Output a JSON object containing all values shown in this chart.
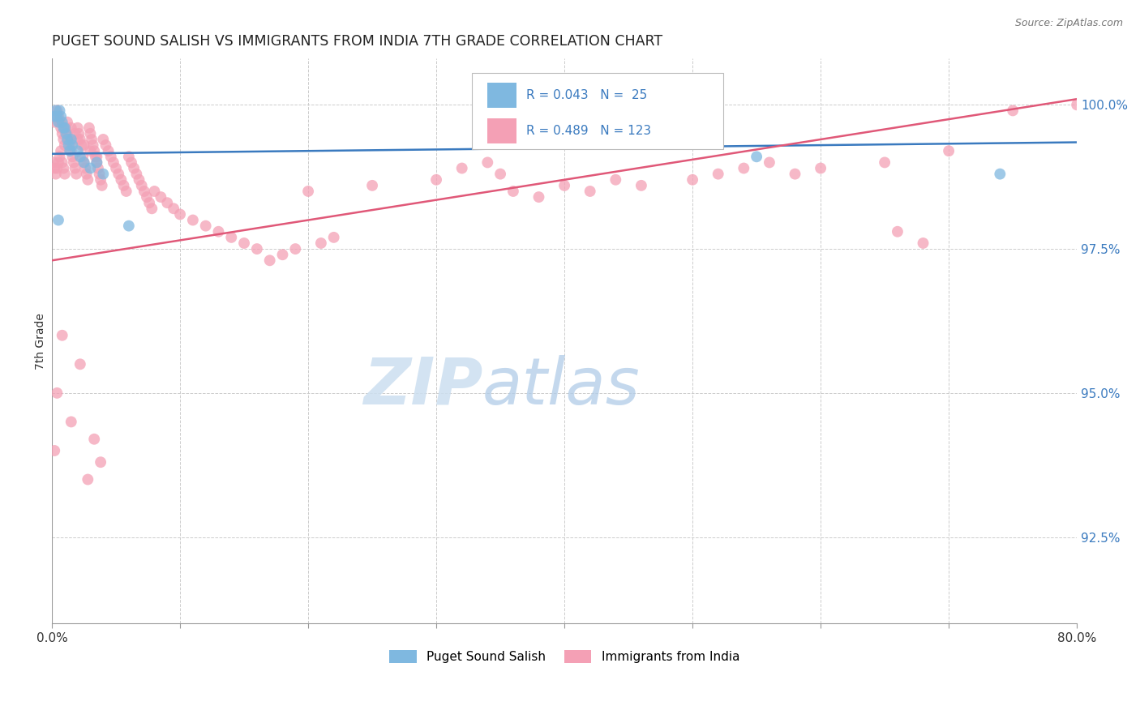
{
  "title": "PUGET SOUND SALISH VS IMMIGRANTS FROM INDIA 7TH GRADE CORRELATION CHART",
  "source": "Source: ZipAtlas.com",
  "ylabel": "7th Grade",
  "xlim": [
    0.0,
    0.8
  ],
  "ylim": [
    0.91,
    1.008
  ],
  "blue_R": 0.043,
  "blue_N": 25,
  "pink_R": 0.489,
  "pink_N": 123,
  "blue_color": "#7fb8e0",
  "pink_color": "#f4a0b5",
  "blue_line_color": "#3a7abf",
  "pink_line_color": "#e05878",
  "background_color": "#ffffff",
  "grid_color": "#cccccc",
  "watermark_zip": "ZIP",
  "watermark_atlas": "atlas",
  "legend_label_blue": "Puget Sound Salish",
  "legend_label_pink": "Immigrants from India",
  "blue_scatter_x": [
    0.002,
    0.003,
    0.004,
    0.005,
    0.006,
    0.007,
    0.008,
    0.009,
    0.01,
    0.011,
    0.012,
    0.013,
    0.014,
    0.015,
    0.016,
    0.02,
    0.022,
    0.025,
    0.03,
    0.035,
    0.04,
    0.06,
    0.55,
    0.74,
    0.005
  ],
  "blue_scatter_y": [
    0.998,
    0.999,
    0.998,
    0.997,
    0.999,
    0.998,
    0.997,
    0.996,
    0.996,
    0.995,
    0.994,
    0.993,
    0.992,
    0.994,
    0.993,
    0.992,
    0.991,
    0.99,
    0.989,
    0.99,
    0.988,
    0.979,
    0.991,
    0.988,
    0.98
  ],
  "pink_scatter_x": [
    0.001,
    0.002,
    0.003,
    0.004,
    0.005,
    0.006,
    0.007,
    0.008,
    0.009,
    0.01,
    0.011,
    0.012,
    0.013,
    0.014,
    0.015,
    0.016,
    0.017,
    0.018,
    0.019,
    0.02,
    0.021,
    0.022,
    0.023,
    0.024,
    0.025,
    0.026,
    0.027,
    0.028,
    0.029,
    0.03,
    0.031,
    0.032,
    0.033,
    0.034,
    0.035,
    0.036,
    0.037,
    0.038,
    0.039,
    0.04,
    0.042,
    0.044,
    0.046,
    0.048,
    0.05,
    0.052,
    0.054,
    0.056,
    0.058,
    0.06,
    0.062,
    0.064,
    0.066,
    0.068,
    0.07,
    0.072,
    0.074,
    0.076,
    0.078,
    0.08,
    0.085,
    0.09,
    0.095,
    0.1,
    0.11,
    0.12,
    0.13,
    0.14,
    0.15,
    0.16,
    0.002,
    0.003,
    0.004,
    0.005,
    0.006,
    0.007,
    0.008,
    0.009,
    0.01,
    0.012,
    0.015,
    0.018,
    0.02,
    0.025,
    0.03,
    0.035,
    0.2,
    0.25,
    0.3,
    0.35,
    0.38,
    0.42,
    0.46,
    0.5,
    0.52,
    0.54,
    0.56,
    0.58,
    0.6,
    0.65,
    0.18,
    0.19,
    0.21,
    0.22,
    0.17,
    0.8,
    0.75,
    0.7,
    0.68,
    0.66,
    0.32,
    0.34,
    0.36,
    0.4,
    0.44,
    0.002,
    0.004,
    0.008,
    0.015,
    0.022,
    0.028,
    0.033,
    0.038,
    0.045,
    0.055
  ],
  "pink_scatter_y": [
    0.99,
    0.989,
    0.988,
    0.989,
    0.99,
    0.991,
    0.992,
    0.99,
    0.989,
    0.988,
    0.996,
    0.995,
    0.994,
    0.993,
    0.992,
    0.991,
    0.99,
    0.989,
    0.988,
    0.996,
    0.995,
    0.994,
    0.993,
    0.991,
    0.99,
    0.989,
    0.988,
    0.987,
    0.996,
    0.995,
    0.994,
    0.993,
    0.992,
    0.991,
    0.99,
    0.989,
    0.988,
    0.987,
    0.986,
    0.994,
    0.993,
    0.992,
    0.991,
    0.99,
    0.989,
    0.988,
    0.987,
    0.986,
    0.985,
    0.991,
    0.99,
    0.989,
    0.988,
    0.987,
    0.986,
    0.985,
    0.984,
    0.983,
    0.982,
    0.985,
    0.984,
    0.983,
    0.982,
    0.981,
    0.98,
    0.979,
    0.978,
    0.977,
    0.976,
    0.975,
    0.997,
    0.998,
    0.999,
    0.998,
    0.997,
    0.996,
    0.995,
    0.994,
    0.993,
    0.997,
    0.996,
    0.995,
    0.994,
    0.993,
    0.992,
    0.991,
    0.985,
    0.986,
    0.987,
    0.988,
    0.984,
    0.985,
    0.986,
    0.987,
    0.988,
    0.989,
    0.99,
    0.988,
    0.989,
    0.99,
    0.974,
    0.975,
    0.976,
    0.977,
    0.973,
    1.0,
    0.999,
    0.992,
    0.976,
    0.978,
    0.989,
    0.99,
    0.985,
    0.986,
    0.987,
    0.94,
    0.95,
    0.96,
    0.945,
    0.955,
    0.935,
    0.942,
    0.938,
    0.948,
    0.952
  ]
}
